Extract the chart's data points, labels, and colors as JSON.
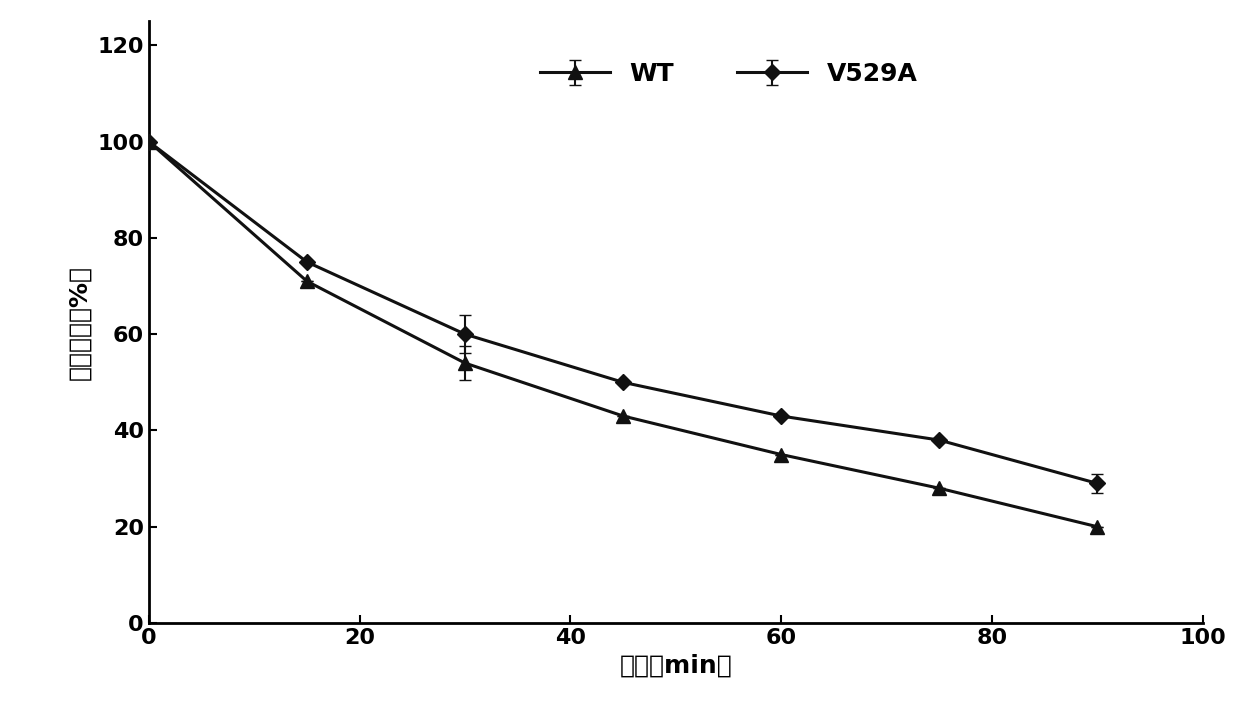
{
  "wt_x": [
    0,
    15,
    30,
    45,
    60,
    75,
    90
  ],
  "wt_y": [
    100,
    71,
    54,
    43,
    35,
    28,
    20
  ],
  "wt_yerr": [
    0,
    0,
    3.5,
    0,
    0,
    0,
    0
  ],
  "v529a_x": [
    0,
    15,
    30,
    45,
    60,
    75,
    90
  ],
  "v529a_y": [
    100,
    75,
    60,
    50,
    43,
    38,
    29
  ],
  "v529a_yerr": [
    0,
    0,
    4.0,
    0,
    0,
    0,
    2.0
  ],
  "wt_label": "WT",
  "v529a_label": "V529A",
  "xlabel": "时间（min）",
  "ylabel": "相对酶活（%）",
  "xlim": [
    0,
    100
  ],
  "ylim": [
    0,
    125
  ],
  "xticks": [
    0,
    20,
    40,
    60,
    80,
    100
  ],
  "yticks": [
    0,
    20,
    40,
    60,
    80,
    100,
    120
  ],
  "line_color": "#111111",
  "background_color": "#ffffff",
  "marker_wt": "^",
  "marker_v529a": "D",
  "marker_size_wt": 10,
  "marker_size_v529a": 8,
  "linewidth": 2.2,
  "legend_fontsize": 18,
  "axis_label_fontsize": 18,
  "tick_fontsize": 16
}
